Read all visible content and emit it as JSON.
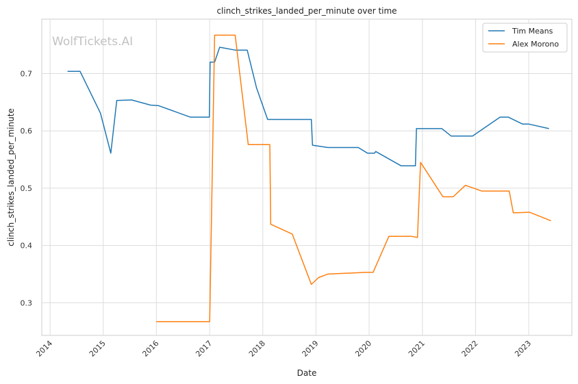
{
  "chart_data": {
    "type": "line",
    "title": "clinch_strikes_landed_per_minute over time",
    "xlabel": "Date",
    "ylabel": "clinch_strikes_landed_per_minute",
    "watermark": "WolfTickets.AI",
    "xlim": [
      "2013-11-05",
      "2023-10-24"
    ],
    "ylim": [
      0.243,
      0.795
    ],
    "x_ticks": [
      "2014",
      "2015",
      "2016",
      "2017",
      "2018",
      "2019",
      "2020",
      "2021",
      "2022",
      "2023"
    ],
    "y_ticks": [
      "0.3",
      "0.4",
      "0.5",
      "0.6",
      "0.7"
    ],
    "grid": true,
    "legend_position": "top-right",
    "series": [
      {
        "name": "Tim Means",
        "color": "#1f77b4",
        "points": [
          [
            "2014-05-01",
            0.704
          ],
          [
            "2014-07-26",
            0.704
          ],
          [
            "2014-12-13",
            0.631
          ],
          [
            "2015-02-22",
            0.561
          ],
          [
            "2015-04-04",
            0.653
          ],
          [
            "2015-07-15",
            0.654
          ],
          [
            "2015-11-21",
            0.645
          ],
          [
            "2016-01-17",
            0.644
          ],
          [
            "2016-08-20",
            0.624
          ],
          [
            "2016-12-30",
            0.624
          ],
          [
            "2017-01-04",
            0.72
          ],
          [
            "2017-02-04",
            0.72
          ],
          [
            "2017-03-11",
            0.746
          ],
          [
            "2017-06-25",
            0.741
          ],
          [
            "2017-09-16",
            0.741
          ],
          [
            "2017-11-19",
            0.675
          ],
          [
            "2018-02-03",
            0.62
          ],
          [
            "2018-11-30",
            0.62
          ],
          [
            "2018-12-08",
            0.575
          ],
          [
            "2019-03-23",
            0.571
          ],
          [
            "2019-10-18",
            0.571
          ],
          [
            "2019-12-21",
            0.561
          ],
          [
            "2020-02-07",
            0.561
          ],
          [
            "2020-02-15",
            0.564
          ],
          [
            "2020-08-08",
            0.539
          ],
          [
            "2020-11-14",
            0.539
          ],
          [
            "2020-11-21",
            0.604
          ],
          [
            "2021-05-15",
            0.604
          ],
          [
            "2021-07-17",
            0.591
          ],
          [
            "2021-12-11",
            0.591
          ],
          [
            "2022-06-18",
            0.624
          ],
          [
            "2022-08-13",
            0.624
          ],
          [
            "2022-11-19",
            0.612
          ],
          [
            "2022-12-31",
            0.612
          ],
          [
            "2023-05-20",
            0.604
          ]
        ]
      },
      {
        "name": "Alex Morono",
        "color": "#ff7f0e",
        "points": [
          [
            "2015-12-31",
            0.267
          ],
          [
            "2017-01-01",
            0.267
          ],
          [
            "2017-02-04",
            0.767
          ],
          [
            "2017-06-25",
            0.767
          ],
          [
            "2017-09-23",
            0.576
          ],
          [
            "2018-02-18",
            0.576
          ],
          [
            "2018-02-24",
            0.437
          ],
          [
            "2018-07-22",
            0.42
          ],
          [
            "2018-11-30",
            0.332
          ],
          [
            "2019-01-19",
            0.344
          ],
          [
            "2019-03-23",
            0.35
          ],
          [
            "2019-12-07",
            0.353
          ],
          [
            "2020-01-28",
            0.353
          ],
          [
            "2020-05-16",
            0.416
          ],
          [
            "2020-10-17",
            0.416
          ],
          [
            "2020-11-28",
            0.414
          ],
          [
            "2020-12-19",
            0.545
          ],
          [
            "2021-05-22",
            0.485
          ],
          [
            "2021-07-31",
            0.485
          ],
          [
            "2021-10-23",
            0.505
          ],
          [
            "2022-02-12",
            0.495
          ],
          [
            "2022-08-20",
            0.495
          ],
          [
            "2022-09-17",
            0.457
          ],
          [
            "2023-01-07",
            0.458
          ],
          [
            "2023-06-03",
            0.443
          ]
        ]
      }
    ]
  }
}
